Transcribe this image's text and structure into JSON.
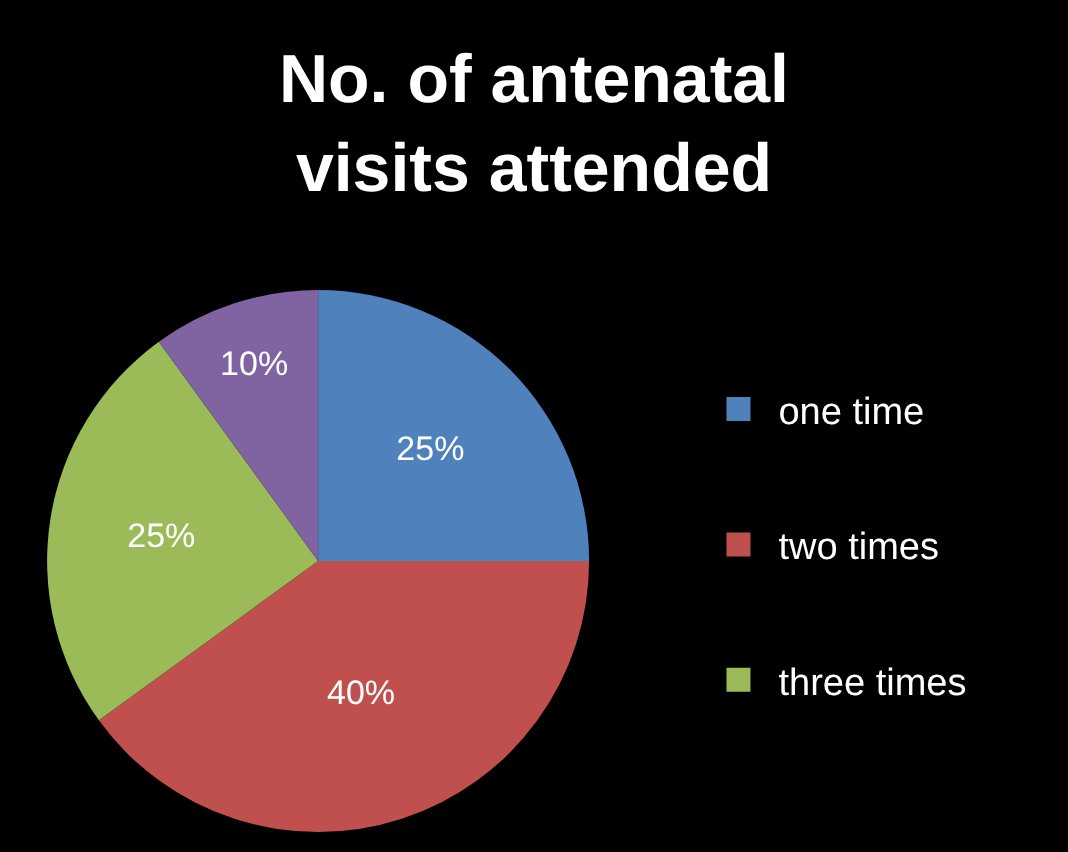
{
  "chart_data": {
    "type": "pie",
    "title": "No. of antenatal\nvisits attended",
    "categories": [
      "one time",
      "two times",
      "three times",
      null
    ],
    "values": [
      25,
      40,
      25,
      10
    ],
    "value_labels": [
      "25%",
      "40%",
      "25%",
      "10%"
    ],
    "colors": [
      "#4f81bd",
      "#c0504d",
      "#9bbb59",
      "#8064a2"
    ],
    "legend": "right"
  }
}
